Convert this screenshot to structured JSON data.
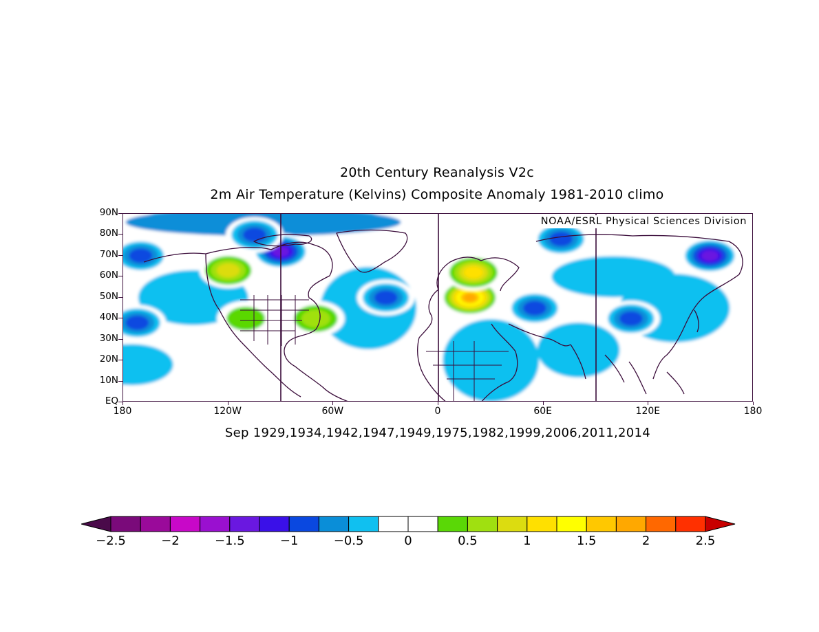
{
  "titles": {
    "line1": "20th Century Reanalysis V2c",
    "line2": "2m Air Temperature (Kelvins) Composite Anomaly 1981-2010 climo",
    "credit": "NOAA/ESRL Physical Sciences Division",
    "subtitle": "Sep 1929,1934,1942,1947,1949,1975,1982,1999,2006,2011,2014"
  },
  "axes": {
    "lat_labels": [
      "90N",
      "80N",
      "70N",
      "60N",
      "50N",
      "40N",
      "30N",
      "20N",
      "10N",
      "EQ"
    ],
    "lat_values": [
      90,
      80,
      70,
      60,
      50,
      40,
      30,
      20,
      10,
      0
    ],
    "lon_labels": [
      "180",
      "120W",
      "60W",
      "0",
      "60E",
      "120E",
      "180"
    ],
    "lon_values": [
      -180,
      -120,
      -60,
      0,
      60,
      120,
      180
    ],
    "lon_range": [
      -180,
      180
    ],
    "lat_range": [
      0,
      90
    ],
    "meridian_lines_lon": [
      -90,
      0,
      90
    ]
  },
  "colorbar": {
    "labels": [
      "−2.5",
      "−2",
      "−1.5",
      "−1",
      "−0.5",
      "0",
      "0.5",
      "1",
      "1.5",
      "2",
      "2.5"
    ],
    "label_values": [
      -2.5,
      -2,
      -1.5,
      -1,
      -0.5,
      0,
      0.5,
      1,
      1.5,
      2,
      2.5
    ],
    "below_color": "#4a0a4a",
    "above_color": "#c80000",
    "colors": [
      "#7a0a7a",
      "#9a0a9a",
      "#c808c8",
      "#9a10d0",
      "#6a18e0",
      "#3a10e8",
      "#0a48e0",
      "#0a8ed8",
      "#10c0f0",
      "#ffffff",
      "#ffffff",
      "#5ad806",
      "#a0e010",
      "#dcdc10",
      "#ffe000",
      "#ffff00",
      "#ffc800",
      "#ffa800",
      "#ff6800",
      "#ff3000"
    ]
  },
  "chart_data": {
    "type": "heatmap",
    "title": "2m Air Temperature (Kelvins) Composite Anomaly 1981-2010 climo",
    "subtitle": "Sep 1929,1934,1942,1947,1949,1975,1982,1999,2006,2011,2014",
    "xlim": [
      -180,
      180
    ],
    "ylim": [
      0,
      90
    ],
    "units": "Kelvins",
    "anomaly_regions": [
      {
        "lon": -120,
        "lat": 63,
        "value": 1.0
      },
      {
        "lon": -110,
        "lat": 40,
        "value": 0.5
      },
      {
        "lon": -70,
        "lat": 40,
        "value": 0.7
      },
      {
        "lon": 18,
        "lat": 50,
        "value": 2.0
      },
      {
        "lon": 20,
        "lat": 62,
        "value": 1.2
      },
      {
        "lon": -90,
        "lat": 72,
        "value": -1.5
      },
      {
        "lon": -105,
        "lat": 80,
        "value": -1.0
      },
      {
        "lon": -170,
        "lat": 70,
        "value": -1.0
      },
      {
        "lon": 55,
        "lat": 45,
        "value": -1.0
      },
      {
        "lon": 110,
        "lat": 40,
        "value": -1.0
      },
      {
        "lon": 155,
        "lat": 70,
        "value": -1.5
      },
      {
        "lon": 70,
        "lat": 78,
        "value": -1.0
      },
      {
        "lon": -30,
        "lat": 50,
        "value": -1.0
      },
      {
        "lon": -172,
        "lat": 38,
        "value": -1.0
      }
    ]
  }
}
